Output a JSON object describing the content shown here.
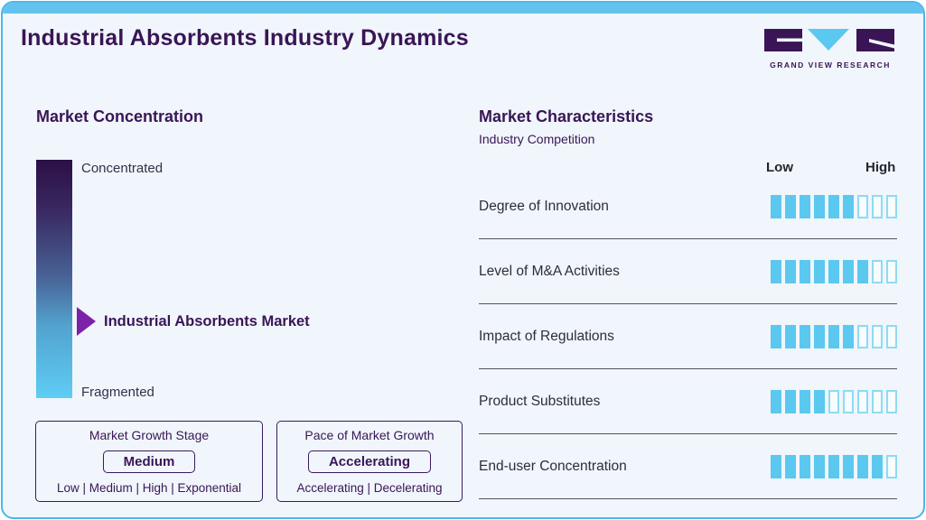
{
  "header": {
    "title": "Industrial Absorbents Industry Dynamics",
    "logo": {
      "brand": "GRAND VIEW RESEARCH",
      "letters": "GVR"
    }
  },
  "market_concentration": {
    "heading": "Market Concentration",
    "scale": {
      "top": "Concentrated",
      "bottom": "Fragmented"
    },
    "pointer_label": "Industrial Absorbents Market",
    "growth_stage_box": {
      "title": "Market Growth Stage",
      "selected": "Medium",
      "options": "Low | Medium | High | Exponential"
    },
    "pace_box": {
      "title": "Pace of Market Growth",
      "selected": "Accelerating",
      "options": "Accelerating | Decelerating"
    }
  },
  "market_characteristics": {
    "heading": "Market Characteristics",
    "subheading": "Industry Competition",
    "scale_labels": {
      "low": "Low",
      "high": "High"
    },
    "total_ticks": 9,
    "rows": [
      {
        "label": "Degree of Innovation",
        "filled": 6
      },
      {
        "label": "Level of M&A Activities",
        "filled": 7
      },
      {
        "label": "Impact of Regulations",
        "filled": 6
      },
      {
        "label": "Product Substitutes",
        "filled": 4
      },
      {
        "label": "End-user Concentration",
        "filled": 8
      }
    ]
  },
  "colors": {
    "accent_blue": "#5bc8f0",
    "tick_empty_border": "#8edaf6",
    "deep_purple": "#3a1556",
    "arrow_purple": "#7c22a8",
    "text_dark": "#2e2d3b",
    "gradient_top": "#2c0f45",
    "gradient_bottom": "#5ecdf5",
    "border_blue": "#49b9e7",
    "top_strip": "#63c3ee",
    "card_bg": "#f0f6fb"
  }
}
